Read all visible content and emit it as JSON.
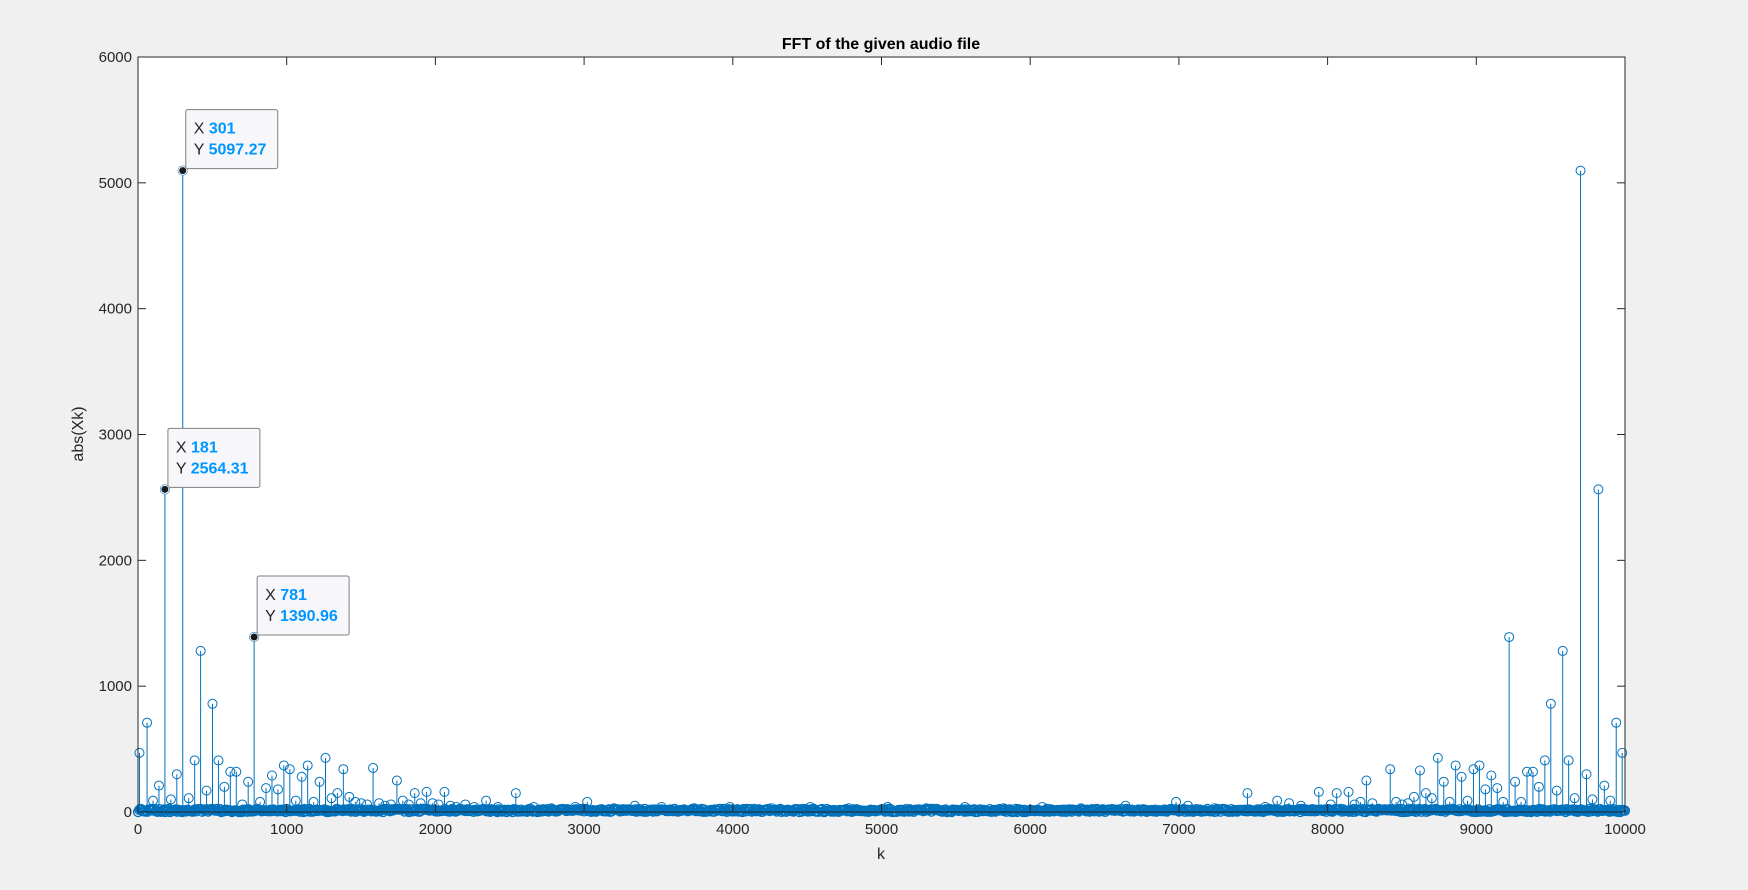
{
  "chart_data": {
    "type": "stem",
    "title": "FFT of the given audio file",
    "xlabel": "k",
    "ylabel": "abs(Xk)",
    "xlim": [
      0,
      10000
    ],
    "ylim": [
      0,
      6000
    ],
    "xticks": [
      0,
      1000,
      2000,
      3000,
      4000,
      5000,
      6000,
      7000,
      8000,
      9000,
      10000
    ],
    "yticks": [
      0,
      1000,
      2000,
      3000,
      4000,
      5000,
      6000
    ],
    "grid": false,
    "series": [
      {
        "color": "#0072bd",
        "marker": "circle",
        "points": [
          [
            10,
            470
          ],
          [
            61,
            710
          ],
          [
            101,
            90
          ],
          [
            141,
            210
          ],
          [
            181,
            2564.31
          ],
          [
            221,
            100
          ],
          [
            261,
            300
          ],
          [
            301,
            5097.27
          ],
          [
            341,
            110
          ],
          [
            381,
            410
          ],
          [
            421,
            1280
          ],
          [
            461,
            170
          ],
          [
            501,
            860
          ],
          [
            541,
            410
          ],
          [
            581,
            200
          ],
          [
            621,
            320
          ],
          [
            661,
            320
          ],
          [
            701,
            60
          ],
          [
            741,
            240
          ],
          [
            781,
            1390.96
          ],
          [
            821,
            80
          ],
          [
            861,
            190
          ],
          [
            901,
            290
          ],
          [
            941,
            180
          ],
          [
            981,
            370
          ],
          [
            1021,
            340
          ],
          [
            1061,
            90
          ],
          [
            1101,
            280
          ],
          [
            1141,
            370
          ],
          [
            1181,
            80
          ],
          [
            1221,
            240
          ],
          [
            1261,
            430
          ],
          [
            1301,
            110
          ],
          [
            1341,
            150
          ],
          [
            1381,
            340
          ],
          [
            1421,
            120
          ],
          [
            1461,
            80
          ],
          [
            1501,
            70
          ],
          [
            1541,
            60
          ],
          [
            1581,
            350
          ],
          [
            1621,
            70
          ],
          [
            1661,
            50
          ],
          [
            1701,
            60
          ],
          [
            1741,
            250
          ],
          [
            1781,
            90
          ],
          [
            1821,
            60
          ],
          [
            1861,
            150
          ],
          [
            1901,
            70
          ],
          [
            1941,
            160
          ],
          [
            1981,
            70
          ],
          [
            2021,
            60
          ],
          [
            2061,
            160
          ],
          [
            2101,
            50
          ],
          [
            2141,
            40
          ],
          [
            2201,
            60
          ],
          [
            2261,
            40
          ],
          [
            2341,
            90
          ],
          [
            2421,
            40
          ],
          [
            2541,
            150
          ],
          [
            2661,
            40
          ],
          [
            2781,
            30
          ],
          [
            2941,
            40
          ],
          [
            3021,
            80
          ],
          [
            3201,
            30
          ],
          [
            3341,
            50
          ],
          [
            3521,
            40
          ],
          [
            3741,
            30
          ],
          [
            3981,
            40
          ],
          [
            4261,
            30
          ],
          [
            4521,
            40
          ],
          [
            4781,
            30
          ],
          [
            5041,
            40
          ],
          [
            5301,
            30
          ],
          [
            5561,
            40
          ],
          [
            5821,
            30
          ],
          [
            6081,
            40
          ],
          [
            6341,
            30
          ],
          [
            6641,
            50
          ],
          [
            6981,
            80
          ],
          [
            7061,
            50
          ],
          [
            7241,
            30
          ],
          [
            7461,
            150
          ],
          [
            7581,
            40
          ],
          [
            7661,
            90
          ],
          [
            7741,
            70
          ],
          [
            7821,
            50
          ],
          [
            7941,
            160
          ],
          [
            8021,
            60
          ],
          [
            8061,
            150
          ],
          [
            8141,
            160
          ],
          [
            8181,
            60
          ],
          [
            8221,
            80
          ],
          [
            8261,
            250
          ],
          [
            8301,
            70
          ],
          [
            8421,
            340
          ],
          [
            8461,
            80
          ],
          [
            8501,
            60
          ],
          [
            8541,
            70
          ],
          [
            8581,
            120
          ],
          [
            8621,
            330
          ],
          [
            8661,
            150
          ],
          [
            8701,
            110
          ],
          [
            8741,
            430
          ],
          [
            8781,
            240
          ],
          [
            8821,
            80
          ],
          [
            8861,
            370
          ],
          [
            8901,
            280
          ],
          [
            8941,
            90
          ],
          [
            8981,
            340
          ],
          [
            9021,
            370
          ],
          [
            9061,
            180
          ],
          [
            9101,
            290
          ],
          [
            9141,
            190
          ],
          [
            9181,
            80
          ],
          [
            9221,
            1390
          ],
          [
            9261,
            240
          ],
          [
            9301,
            80
          ],
          [
            9341,
            320
          ],
          [
            9381,
            320
          ],
          [
            9421,
            200
          ],
          [
            9461,
            410
          ],
          [
            9501,
            860
          ],
          [
            9541,
            170
          ],
          [
            9581,
            1280
          ],
          [
            9621,
            410
          ],
          [
            9661,
            110
          ],
          [
            9701,
            5097
          ],
          [
            9741,
            300
          ],
          [
            9781,
            100
          ],
          [
            9821,
            2564
          ],
          [
            9861,
            210
          ],
          [
            9901,
            90
          ],
          [
            9941,
            710
          ],
          [
            9981,
            470
          ]
        ],
        "baseline_noise_max": 25
      }
    ],
    "datatips": [
      {
        "x_label": "X",
        "x_value": "301",
        "y_label": "Y",
        "y_value": "5097.27",
        "x": 301,
        "y": 5097.27
      },
      {
        "x_label": "X",
        "x_value": "181",
        "y_label": "Y",
        "y_value": "2564.31",
        "x": 181,
        "y": 2564.31
      },
      {
        "x_label": "X",
        "x_value": "781",
        "y_label": "Y",
        "y_value": "1390.96",
        "x": 781,
        "y": 1390.96
      }
    ],
    "colors": {
      "series": "#0072bd",
      "datatip_value": "#0096ff",
      "axes": "#262626",
      "figure_bg": "#f0f0f0",
      "axes_bg": "#ffffff"
    }
  }
}
